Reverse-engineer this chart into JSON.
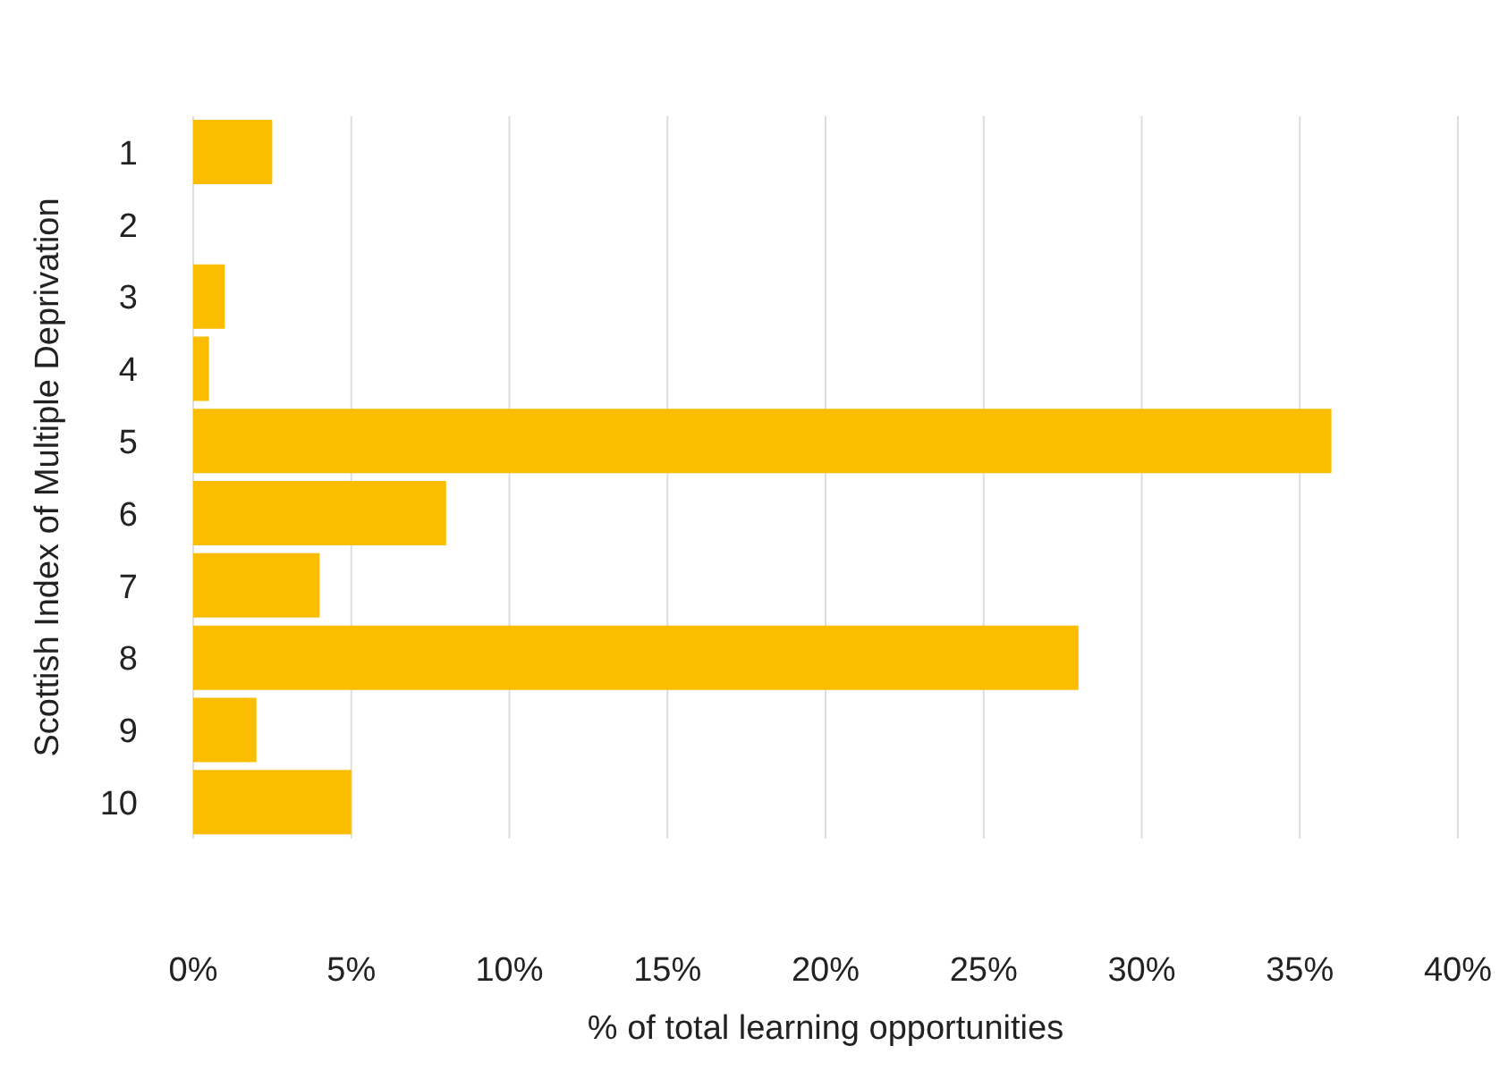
{
  "chart_data": {
    "type": "bar",
    "orientation": "horizontal",
    "ylabel": "Scottish Index of Multiple Deprivation",
    "xlabel": "% of total learning opportunities",
    "categories": [
      "1",
      "2",
      "3",
      "4",
      "5",
      "6",
      "7",
      "8",
      "9",
      "10"
    ],
    "values": [
      2.5,
      0,
      1,
      0.5,
      36,
      8,
      4,
      28,
      2,
      5
    ],
    "color": "#fbbd00",
    "xlim": [
      0,
      40
    ],
    "xticks": [
      {
        "value": 0,
        "label": "0%"
      },
      {
        "value": 5,
        "label": "5%"
      },
      {
        "value": 10,
        "label": "10%"
      },
      {
        "value": 15,
        "label": "15%"
      },
      {
        "value": 20,
        "label": "20%"
      },
      {
        "value": 25,
        "label": "25%"
      },
      {
        "value": 30,
        "label": "30%"
      },
      {
        "value": 35,
        "label": "35%"
      },
      {
        "value": 40,
        "label": "40%"
      }
    ],
    "grid": "x"
  }
}
